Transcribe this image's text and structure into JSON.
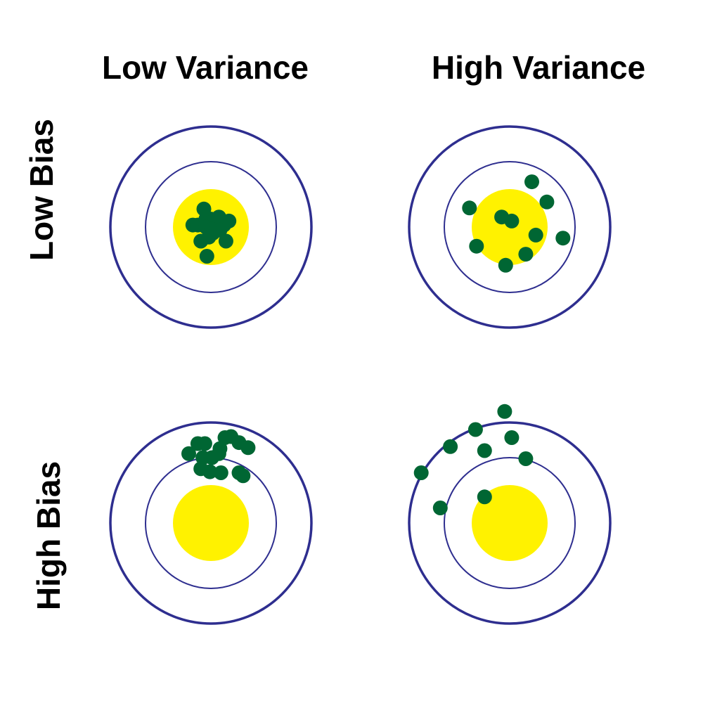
{
  "columns": [
    "Low Variance",
    "High Variance"
  ],
  "rows": [
    "Low Bias",
    "High Bias"
  ],
  "colors": {
    "ring": "#2e2e8f",
    "bullseye": "#fff200",
    "shot": "#006633",
    "background": "#ffffff"
  },
  "targets": [
    {
      "name": "low-bias-low-variance",
      "shots": [
        [
          -0.07,
          -0.18
        ],
        [
          -0.18,
          -0.02
        ],
        [
          -0.13,
          -0.02
        ],
        [
          -0.05,
          -0.08
        ],
        [
          0.0,
          -0.08
        ],
        [
          0.08,
          -0.1
        ],
        [
          0.18,
          -0.06
        ],
        [
          -0.02,
          -0.04
        ],
        [
          0.06,
          -0.04
        ],
        [
          0.13,
          -0.02
        ],
        [
          -0.05,
          0.0
        ],
        [
          0.01,
          0.02
        ],
        [
          0.09,
          0.03
        ],
        [
          0.02,
          0.06
        ],
        [
          -0.1,
          0.14
        ],
        [
          -0.02,
          0.1
        ],
        [
          0.15,
          0.14
        ],
        [
          -0.04,
          0.29
        ]
      ]
    },
    {
      "name": "low-bias-high-variance",
      "shots": [
        [
          0.22,
          -0.45
        ],
        [
          -0.4,
          -0.19
        ],
        [
          0.37,
          -0.25
        ],
        [
          -0.08,
          -0.1
        ],
        [
          0.02,
          -0.06
        ],
        [
          0.26,
          0.08
        ],
        [
          0.53,
          0.11
        ],
        [
          -0.33,
          0.19
        ],
        [
          0.16,
          0.27
        ],
        [
          -0.04,
          0.38
        ]
      ]
    },
    {
      "name": "high-bias-low-variance",
      "shots": [
        [
          -0.13,
          -0.79
        ],
        [
          -0.06,
          -0.79
        ],
        [
          0.14,
          -0.85
        ],
        [
          0.2,
          -0.86
        ],
        [
          0.28,
          -0.8
        ],
        [
          0.37,
          -0.75
        ],
        [
          0.09,
          -0.74
        ],
        [
          -0.22,
          -0.69
        ],
        [
          0.08,
          -0.69
        ],
        [
          -0.08,
          -0.65
        ],
        [
          0.01,
          -0.65
        ],
        [
          -0.1,
          -0.54
        ],
        [
          -0.01,
          -0.51
        ],
        [
          0.1,
          -0.5
        ],
        [
          0.28,
          -0.5
        ],
        [
          0.32,
          -0.47
        ]
      ]
    },
    {
      "name": "high-bias-high-variance",
      "shots": [
        [
          -0.05,
          -1.11
        ],
        [
          -0.34,
          -0.93
        ],
        [
          0.02,
          -0.85
        ],
        [
          -0.59,
          -0.76
        ],
        [
          -0.25,
          -0.72
        ],
        [
          0.16,
          -0.64
        ],
        [
          -0.88,
          -0.5
        ],
        [
          -0.25,
          -0.26
        ],
        [
          -0.69,
          -0.15
        ]
      ]
    }
  ]
}
